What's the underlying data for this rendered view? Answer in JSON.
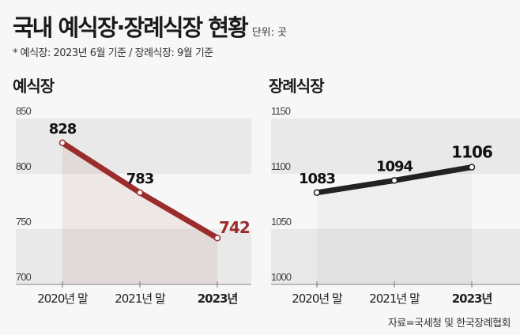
{
  "header": {
    "title": "국내 예식장·장례식장 현황",
    "unit": "단위: 곳",
    "note": "* 예식장: 2023년 6월 기준 / 장례식장: 9월 기준"
  },
  "source": "자료=국세청 및 한국장례협회",
  "chart_data": [
    {
      "type": "line",
      "title": "예식장",
      "categories": [
        "2020년 말",
        "2021년 말",
        "2023년"
      ],
      "values": [
        828,
        783,
        742
      ],
      "ylim": [
        700,
        850
      ],
      "yticks": [
        "700",
        "750",
        "800",
        "850"
      ],
      "color": "#9b2c2c",
      "last_label_color": "#9b2c2c",
      "area_fill": true
    },
    {
      "type": "line",
      "title": "장례식장",
      "categories": [
        "2020년 말",
        "2021년 말",
        "2023년"
      ],
      "values": [
        1083,
        1094,
        1106
      ],
      "ylim": [
        1000,
        1150
      ],
      "yticks": [
        "1000",
        "1050",
        "1100",
        "1150"
      ],
      "color": "#222222",
      "last_label_color": "#111111",
      "area_fill": true
    }
  ]
}
